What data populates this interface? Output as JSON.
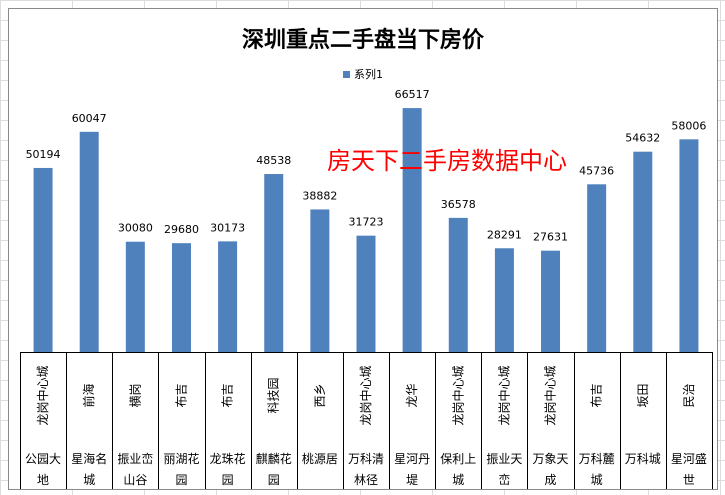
{
  "chart_data": {
    "type": "bar",
    "title": "深圳重点二手盘当下房价",
    "watermark": "房天下二手房数据中心",
    "legend": {
      "position": "top-center",
      "entries": [
        "系列1"
      ]
    },
    "series": [
      {
        "name": "系列1",
        "color": "#4f81bd",
        "values": [
          50194,
          60047,
          30080,
          29680,
          30173,
          48538,
          38882,
          31723,
          66517,
          36578,
          28291,
          27631,
          45736,
          54632,
          58006
        ]
      }
    ],
    "categories": [
      {
        "area": "龙岗中心城",
        "estate_lines": [
          "公园大",
          "地"
        ]
      },
      {
        "area": "前海",
        "estate_lines": [
          "星海名",
          "城"
        ]
      },
      {
        "area": "横岗",
        "estate_lines": [
          "振业峦",
          "山谷"
        ]
      },
      {
        "area": "布吉",
        "estate_lines": [
          "丽湖花",
          "园"
        ]
      },
      {
        "area": "布吉",
        "estate_lines": [
          "龙珠花",
          "园"
        ]
      },
      {
        "area": "科技园",
        "estate_lines": [
          "麒麟花",
          "园"
        ]
      },
      {
        "area": "西乡",
        "estate_lines": [
          "桃源居"
        ]
      },
      {
        "area": "龙岗中心城",
        "estate_lines": [
          "万科清",
          "林径"
        ]
      },
      {
        "area": "龙华",
        "estate_lines": [
          "星河丹",
          "堤"
        ]
      },
      {
        "area": "龙岗中心城",
        "estate_lines": [
          "保利上",
          "城"
        ]
      },
      {
        "area": "龙岗中心城",
        "estate_lines": [
          "振业天",
          "峦"
        ]
      },
      {
        "area": "龙岗中心城",
        "estate_lines": [
          "万象天",
          "成"
        ]
      },
      {
        "area": "布吉",
        "estate_lines": [
          "万科麓",
          "城"
        ]
      },
      {
        "area": "坂田",
        "estate_lines": [
          "万科城"
        ]
      },
      {
        "area": "民治",
        "estate_lines": [
          "星河盛",
          "世"
        ]
      }
    ],
    "ylim": [
      0,
      75000
    ],
    "grid": false,
    "xlabel": "",
    "ylabel": ""
  }
}
